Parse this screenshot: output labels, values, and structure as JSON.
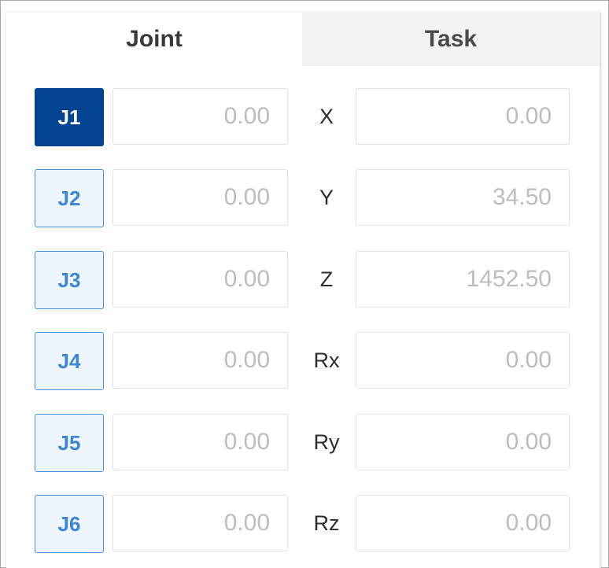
{
  "tabs": [
    {
      "label": "Joint",
      "active": true
    },
    {
      "label": "Task",
      "active": false
    }
  ],
  "joints": [
    {
      "label": "J1",
      "value": "0.00",
      "active": true
    },
    {
      "label": "J2",
      "value": "0.00",
      "active": false
    },
    {
      "label": "J3",
      "value": "0.00",
      "active": false
    },
    {
      "label": "J4",
      "value": "0.00",
      "active": false
    },
    {
      "label": "J5",
      "value": "0.00",
      "active": false
    },
    {
      "label": "J6",
      "value": "0.00",
      "active": false
    }
  ],
  "task": [
    {
      "label": "X",
      "value": "0.00"
    },
    {
      "label": "Y",
      "value": "34.50"
    },
    {
      "label": "Z",
      "value": "1452.50"
    },
    {
      "label": "Rx",
      "value": "0.00"
    },
    {
      "label": "Ry",
      "value": "0.00"
    },
    {
      "label": "Rz",
      "value": "0.00"
    }
  ],
  "colors": {
    "active": "#034491",
    "accent": "#3d86d6"
  }
}
